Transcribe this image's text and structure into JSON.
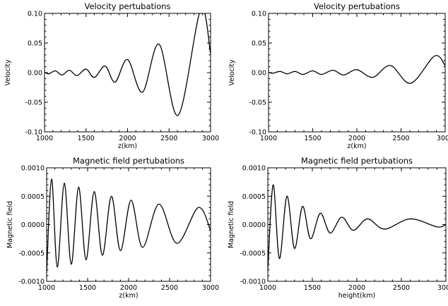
{
  "colors": {
    "line": "#000000",
    "background": "#ffffff",
    "frame": "#000000"
  },
  "chart_data": [
    {
      "type": "line",
      "title": "Velocity pertubations",
      "xlabel": "z(km)",
      "ylabel": "Velocity",
      "xlim": [
        1000,
        3000
      ],
      "ylim": [
        -0.1,
        0.1
      ],
      "xticks": [
        "1000",
        "1500",
        "2000",
        "2500",
        "3000"
      ],
      "yticks": [
        "0.10",
        "0.05",
        "0.00",
        "-0.05",
        "-0.10"
      ],
      "grid": false,
      "x": [
        1000,
        1050,
        1130,
        1210,
        1300,
        1390,
        1500,
        1600,
        1730,
        1850,
        2000,
        2180,
        2380,
        2610,
        2880,
        3000
      ],
      "y": [
        0.001,
        -0.002,
        0.003,
        -0.004,
        0.004,
        -0.005,
        0.006,
        -0.008,
        0.011,
        -0.016,
        0.022,
        -0.033,
        0.048,
        -0.072,
        0.106,
        0.032
      ]
    },
    {
      "type": "line",
      "title": "Velocity pertubations",
      "xlabel": "z(km)",
      "ylabel": "Velocity",
      "xlim": [
        1000,
        3000
      ],
      "ylim": [
        -0.1,
        0.1
      ],
      "xticks": [
        "1000",
        "1500",
        "2000",
        "2500",
        "3000"
      ],
      "yticks": [
        "0.10",
        "0.05",
        "0.00",
        "-0.05",
        "-0.10"
      ],
      "grid": false,
      "x": [
        1000,
        1050,
        1130,
        1210,
        1300,
        1390,
        1500,
        1600,
        1730,
        1850,
        2000,
        2180,
        2380,
        2610,
        2880,
        3000
      ],
      "y": [
        0.0005,
        -0.001,
        0.002,
        -0.002,
        0.002,
        -0.003,
        0.003,
        -0.003,
        0.004,
        -0.004,
        0.005,
        -0.008,
        0.012,
        -0.018,
        0.028,
        0.012
      ]
    },
    {
      "type": "line",
      "title": "Magnetic field pertubations",
      "xlabel": "z(km)",
      "ylabel": "Magnetic field",
      "xlim": [
        1000,
        3000
      ],
      "ylim": [
        -0.001,
        0.001
      ],
      "xticks": [
        "1000",
        "1500",
        "2000",
        "2500",
        "3000"
      ],
      "yticks": [
        "0.0010",
        "0.0005",
        "0.0000",
        "-0.0005",
        "-0.0010"
      ],
      "grid": false,
      "x": [
        1000,
        1060,
        1130,
        1215,
        1300,
        1390,
        1480,
        1580,
        1680,
        1790,
        1900,
        2030,
        2170,
        2370,
        2590,
        2850,
        3000
      ],
      "y": [
        -0.00085,
        0.0008,
        -0.00075,
        0.00073,
        -0.0007,
        0.00066,
        -0.00062,
        0.00058,
        -0.00054,
        0.0005,
        -0.00046,
        0.00043,
        -0.0004,
        0.00036,
        -0.00033,
        0.0003,
        -0.0001
      ]
    },
    {
      "type": "line",
      "title": "Magnetic field pertubations",
      "xlabel": "height(km)",
      "ylabel": "Magnetic field",
      "xlim": [
        1000,
        3000
      ],
      "ylim": [
        -0.001,
        0.001
      ],
      "xticks": [
        "1000",
        "1500",
        "2000",
        "2500",
        "3000"
      ],
      "yticks": [
        "0.0010",
        "0.0005",
        "0.0000",
        "-0.0005",
        "-0.0010"
      ],
      "grid": false,
      "x": [
        1000,
        1060,
        1130,
        1215,
        1300,
        1390,
        1480,
        1590,
        1700,
        1830,
        1960,
        2120,
        2310,
        2600,
        2900,
        3000
      ],
      "y": [
        -0.0008,
        0.0007,
        -0.0006,
        0.0005,
        -0.00042,
        0.00032,
        -0.00025,
        0.0002,
        -0.00015,
        0.00013,
        -0.0001,
        0.0001,
        -8e-05,
        0.0001,
        -4e-05,
        0.0
      ]
    }
  ]
}
